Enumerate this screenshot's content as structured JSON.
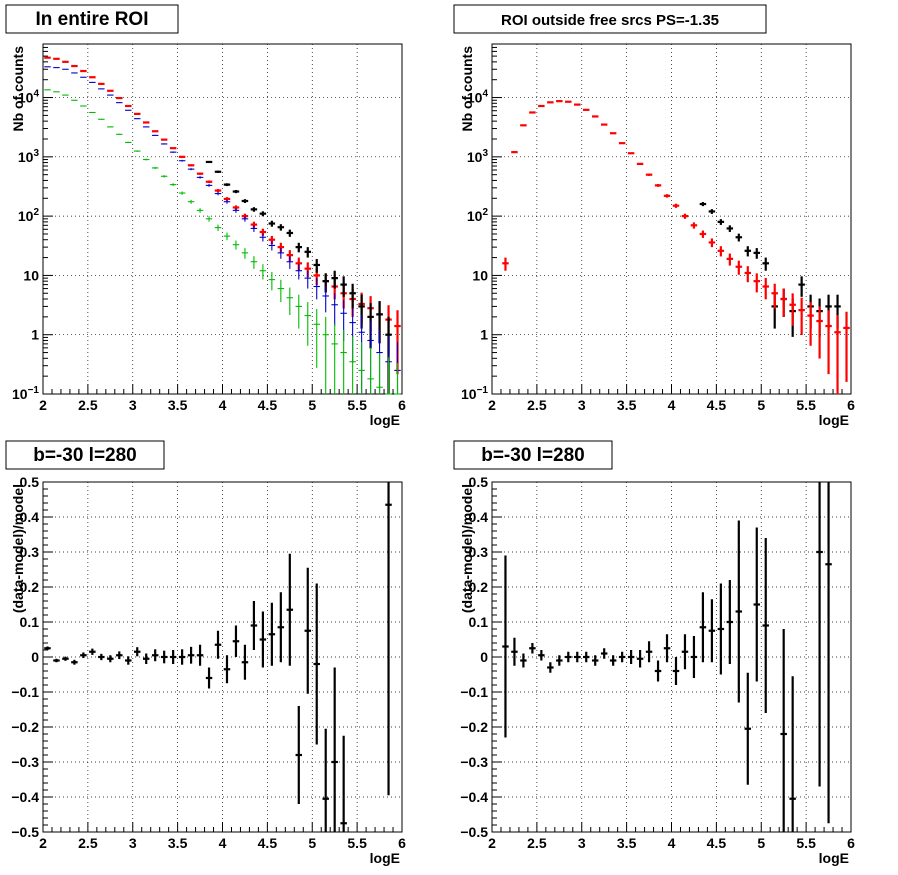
{
  "chart_data": [
    {
      "type": "scatter",
      "title": "In entire ROI",
      "xlabel": "logE",
      "ylabel": "Nb of counts",
      "xlim": [
        2,
        6
      ],
      "ylim": [
        0.1,
        80000
      ],
      "log_y": true,
      "grid": true,
      "xticks": [
        "2",
        "2.5",
        "3",
        "3.5",
        "4",
        "4.5",
        "5",
        "5.5",
        "6"
      ],
      "yticks": [
        {
          "v": 0.1,
          "label": "10",
          "exp": "−1"
        },
        {
          "v": 1,
          "label": "1",
          "exp": ""
        },
        {
          "v": 10,
          "label": "10",
          "exp": ""
        },
        {
          "v": 100,
          "label": "10",
          "exp": "2"
        },
        {
          "v": 1000,
          "label": "10",
          "exp": "3"
        },
        {
          "v": 10000,
          "label": "10",
          "exp": "4"
        }
      ],
      "series": [
        {
          "color": "#ff0000",
          "bold": true,
          "x": [
            2.05,
            2.15,
            2.25,
            2.35,
            2.45,
            2.55,
            2.65,
            2.75,
            2.85,
            2.95,
            3.05,
            3.15,
            3.25,
            3.35,
            3.45,
            3.55,
            3.65,
            3.75,
            3.85,
            3.95,
            4.05,
            4.15,
            4.25,
            4.35,
            4.45,
            4.55,
            4.65,
            4.75,
            4.85,
            4.95,
            5.05,
            5.15,
            5.25,
            5.35,
            5.45,
            5.55,
            5.65,
            5.75,
            5.85,
            5.95
          ],
          "y": [
            47000,
            45000,
            40000,
            34000,
            28000,
            22000,
            17000,
            13000,
            9800,
            7200,
            5300,
            3800,
            2700,
            1950,
            1400,
            1000,
            720,
            520,
            380,
            270,
            195,
            140,
            100,
            72,
            54,
            40,
            30,
            22,
            16,
            13,
            10,
            8,
            6.5,
            5,
            4,
            3.3,
            2.8,
            2.2,
            1.8,
            1.4
          ]
        },
        {
          "color": "#000000",
          "bold": true,
          "x": [
            3.85,
            3.95,
            4.05,
            4.15,
            4.25,
            4.35,
            4.45,
            4.55,
            4.65,
            4.75,
            4.85,
            4.95,
            5.05,
            5.15,
            5.25,
            5.35,
            5.45,
            5.55,
            5.65,
            5.75,
            5.85
          ],
          "y": [
            820,
            560,
            340,
            260,
            180,
            130,
            110,
            75,
            65,
            52,
            30,
            25,
            15,
            8,
            9,
            7,
            5,
            3,
            2,
            2.2,
            1
          ]
        },
        {
          "color": "#0000cc",
          "bold": false,
          "x": [
            2.05,
            2.15,
            2.25,
            2.35,
            2.45,
            2.55,
            2.65,
            2.75,
            2.85,
            2.95,
            3.05,
            3.15,
            3.25,
            3.35,
            3.45,
            3.55,
            3.65,
            3.75,
            3.85,
            3.95,
            4.05,
            4.15,
            4.25,
            4.35,
            4.45,
            4.55,
            4.65,
            4.75,
            4.85,
            4.95,
            5.05,
            5.15,
            5.25,
            5.35,
            5.45,
            5.55,
            5.65,
            5.75,
            5.85,
            5.95
          ],
          "y": [
            33000,
            32000,
            30000,
            26000,
            22000,
            18000,
            14000,
            11000,
            8200,
            6100,
            4400,
            3200,
            2300,
            1650,
            1200,
            860,
            620,
            450,
            330,
            240,
            175,
            125,
            90,
            62,
            44,
            32,
            24,
            17,
            12,
            9,
            6.5,
            4.5,
            3.2,
            2.3,
            1.6,
            1.1,
            0.8,
            0.5,
            0.35,
            0.25
          ]
        },
        {
          "color": "#00bb00",
          "bold": false,
          "x": [
            2.05,
            2.15,
            2.25,
            2.35,
            2.45,
            2.55,
            2.65,
            2.75,
            2.85,
            2.95,
            3.05,
            3.15,
            3.25,
            3.35,
            3.45,
            3.55,
            3.65,
            3.75,
            3.85,
            3.95,
            4.05,
            4.15,
            4.25,
            4.35,
            4.45,
            4.55,
            4.65,
            4.75,
            4.85,
            4.95,
            5.05,
            5.15,
            5.25,
            5.35,
            5.45,
            5.55,
            5.65,
            5.75,
            5.85,
            5.95
          ],
          "y": [
            13500,
            12500,
            11000,
            9000,
            7200,
            5600,
            4300,
            3200,
            2400,
            1750,
            1250,
            900,
            650,
            470,
            340,
            245,
            175,
            125,
            90,
            64,
            46,
            33,
            24,
            17,
            12,
            8.5,
            6,
            4.2,
            3,
            2.1,
            1.5,
            1,
            0.7,
            0.5,
            0.35,
            0.25,
            0.18,
            0.13,
            0.1,
            0.07
          ]
        }
      ]
    },
    {
      "type": "scatter",
      "title": "ROI outside free srcs PS=-1.35",
      "xlabel": "logE",
      "ylabel": "Nb of counts",
      "xlim": [
        2,
        6
      ],
      "ylim": [
        0.1,
        80000
      ],
      "log_y": true,
      "grid": true,
      "xticks": [
        "2",
        "2.5",
        "3",
        "3.5",
        "4",
        "4.5",
        "5",
        "5.5",
        "6"
      ],
      "yticks": [
        {
          "v": 0.1,
          "label": "10",
          "exp": "−1"
        },
        {
          "v": 1,
          "label": "1",
          "exp": ""
        },
        {
          "v": 10,
          "label": "10",
          "exp": ""
        },
        {
          "v": 100,
          "label": "10",
          "exp": "2"
        },
        {
          "v": 1000,
          "label": "10",
          "exp": "3"
        },
        {
          "v": 10000,
          "label": "10",
          "exp": "4"
        }
      ],
      "series": [
        {
          "color": "#000000",
          "bold": true,
          "x": [
            4.35,
            4.45,
            4.55,
            4.65,
            4.75,
            4.85,
            4.95,
            5.05,
            5.15,
            5.25,
            5.35,
            5.45,
            5.55,
            5.65,
            5.75,
            5.85
          ],
          "y": [
            160,
            120,
            80,
            62,
            44,
            26,
            24,
            16,
            3,
            4,
            2.5,
            7,
            3,
            2.5,
            3,
            3
          ]
        },
        {
          "color": "#ff0000",
          "bold": true,
          "x": [
            2.15,
            2.25,
            2.35,
            2.45,
            2.55,
            2.65,
            2.75,
            2.85,
            2.95,
            3.05,
            3.15,
            3.25,
            3.35,
            3.45,
            3.55,
            3.65,
            3.75,
            3.85,
            3.95,
            4.05,
            4.15,
            4.25,
            4.35,
            4.45,
            4.55,
            4.65,
            4.75,
            4.85,
            4.95,
            5.05,
            5.15,
            5.25,
            5.35,
            5.45,
            5.55,
            5.65,
            5.75,
            5.85,
            5.95
          ],
          "y": [
            16,
            1200,
            3400,
            5600,
            7200,
            8300,
            8700,
            8500,
            7600,
            6200,
            4800,
            3500,
            2500,
            1700,
            1150,
            760,
            500,
            330,
            220,
            150,
            100,
            70,
            50,
            36,
            26,
            19,
            14,
            11,
            8,
            6.5,
            5,
            4,
            3.2,
            2.6,
            2.1,
            1.7,
            1.4,
            1.1,
            1.3
          ]
        }
      ]
    },
    {
      "type": "scatter",
      "title": "b=-30 l=280",
      "xlabel": "logE",
      "ylabel": "(data-model)/model",
      "xlim": [
        2,
        6
      ],
      "ylim": [
        -0.5,
        0.5
      ],
      "log_y": false,
      "grid": true,
      "xticks": [
        "2",
        "2.5",
        "3",
        "3.5",
        "4",
        "4.5",
        "5",
        "5.5",
        "6"
      ],
      "yticks": [
        {
          "v": -0.5,
          "label": "−0.5"
        },
        {
          "v": -0.4,
          "label": "−0.4"
        },
        {
          "v": -0.3,
          "label": "−0.3"
        },
        {
          "v": -0.2,
          "label": "−0.2"
        },
        {
          "v": -0.1,
          "label": "−0.1"
        },
        {
          "v": 0,
          "label": "0"
        },
        {
          "v": 0.1,
          "label": "0.1"
        },
        {
          "v": 0.2,
          "label": "0.2"
        },
        {
          "v": 0.3,
          "label": "0.3"
        },
        {
          "v": 0.4,
          "label": "0.4"
        },
        {
          "v": 0.5,
          "label": "0.5"
        }
      ],
      "series": [
        {
          "color": "#000000",
          "bold": true,
          "x": [
            2.05,
            2.15,
            2.25,
            2.35,
            2.45,
            2.55,
            2.65,
            2.75,
            2.85,
            2.95,
            3.05,
            3.15,
            3.25,
            3.35,
            3.45,
            3.55,
            3.65,
            3.75,
            3.85,
            3.95,
            4.05,
            4.15,
            4.25,
            4.35,
            4.45,
            4.55,
            4.65,
            4.75,
            4.85,
            4.95,
            5.05,
            5.15,
            5.25,
            5.35,
            5.85
          ],
          "y": [
            0.025,
            -0.01,
            -0.005,
            -0.015,
            0.005,
            0.015,
            0.0,
            -0.005,
            0.005,
            -0.01,
            0.015,
            -0.005,
            0.005,
            0.0,
            0.0,
            0.0,
            0.005,
            0.005,
            -0.06,
            0.035,
            -0.035,
            0.045,
            -0.015,
            0.09,
            0.05,
            0.065,
            0.085,
            0.135,
            -0.28,
            0.075,
            -0.02,
            -0.405,
            -0.3,
            -0.475,
            0.435
          ],
          "err": [
            0.005,
            0.005,
            0.006,
            0.007,
            0.008,
            0.009,
            0.009,
            0.01,
            0.011,
            0.012,
            0.013,
            0.015,
            0.017,
            0.018,
            0.02,
            0.022,
            0.024,
            0.03,
            0.03,
            0.04,
            0.04,
            0.045,
            0.05,
            0.07,
            0.08,
            0.09,
            0.1,
            0.16,
            0.14,
            0.18,
            0.23,
            0.2,
            0.27,
            0.25,
            0.83
          ]
        }
      ]
    },
    {
      "type": "scatter",
      "title": "b=-30 l=280",
      "xlabel": "logE",
      "ylabel": "(data-model)/model",
      "xlim": [
        2,
        6
      ],
      "ylim": [
        -0.5,
        0.5
      ],
      "log_y": false,
      "grid": true,
      "xticks": [
        "2",
        "2.5",
        "3",
        "3.5",
        "4",
        "4.5",
        "5",
        "5.5",
        "6"
      ],
      "yticks": [
        {
          "v": -0.5,
          "label": "−0.5"
        },
        {
          "v": -0.4,
          "label": "−0.4"
        },
        {
          "v": -0.3,
          "label": "−0.3"
        },
        {
          "v": -0.2,
          "label": "−0.2"
        },
        {
          "v": -0.1,
          "label": "−0.1"
        },
        {
          "v": 0,
          "label": "0"
        },
        {
          "v": 0.1,
          "label": "0.1"
        },
        {
          "v": 0.2,
          "label": "0.2"
        },
        {
          "v": 0.3,
          "label": "0.3"
        },
        {
          "v": 0.4,
          "label": "0.4"
        },
        {
          "v": 0.5,
          "label": "0.5"
        }
      ],
      "series": [
        {
          "color": "#000000",
          "bold": true,
          "x": [
            2.15,
            2.25,
            2.35,
            2.45,
            2.55,
            2.65,
            2.75,
            2.85,
            2.95,
            3.05,
            3.15,
            3.25,
            3.35,
            3.45,
            3.55,
            3.65,
            3.75,
            3.85,
            3.95,
            4.05,
            4.15,
            4.25,
            4.35,
            4.45,
            4.55,
            4.65,
            4.75,
            4.85,
            4.95,
            5.05,
            5.25,
            5.35,
            5.65,
            5.75
          ],
          "y": [
            0.03,
            0.015,
            -0.01,
            0.025,
            0.005,
            -0.03,
            -0.01,
            0.0,
            0.0,
            0.0,
            -0.01,
            0.01,
            -0.01,
            0.0,
            0.0,
            -0.005,
            0.015,
            -0.04,
            0.025,
            -0.04,
            0.015,
            0.0,
            0.085,
            0.075,
            0.08,
            0.1,
            0.13,
            -0.205,
            0.15,
            0.09,
            -0.22,
            -0.405,
            0.3,
            0.265
          ],
          "err": [
            0.26,
            0.04,
            0.02,
            0.015,
            0.015,
            0.015,
            0.015,
            0.015,
            0.015,
            0.015,
            0.015,
            0.015,
            0.015,
            0.015,
            0.02,
            0.025,
            0.03,
            0.03,
            0.04,
            0.04,
            0.05,
            0.06,
            0.1,
            0.09,
            0.13,
            0.12,
            0.26,
            0.16,
            0.22,
            0.25,
            0.3,
            0.35,
            0.67,
            0.74
          ]
        }
      ]
    }
  ]
}
